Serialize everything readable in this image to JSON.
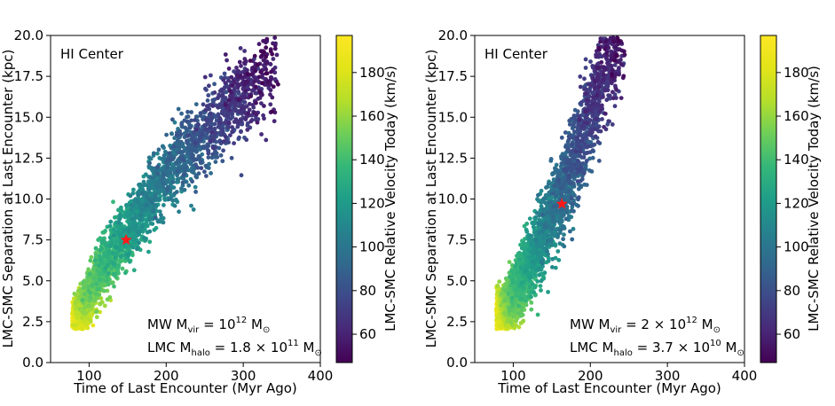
{
  "chart_data": [
    {
      "type": "scatter",
      "panel_label": "HI Center",
      "xlabel": "Time of Last Encounter (Myr Ago)",
      "ylabel": "LMC-SMC Separation at Last Encounter (kpc)",
      "xlim": [
        50,
        400
      ],
      "ylim": [
        0,
        20
      ],
      "xticks": [
        100,
        200,
        300,
        400
      ],
      "yticks": [
        0.0,
        2.5,
        5.0,
        7.5,
        10.0,
        12.5,
        15.0,
        17.5,
        20.0
      ],
      "colorbar": {
        "label": "LMC-SMC Relative Velocity Today (km/s)",
        "range": [
          47,
          197
        ],
        "ticks": [
          60,
          80,
          100,
          120,
          140,
          160,
          180
        ],
        "colormap": "viridis"
      },
      "annotation_lines": [
        {
          "base": "MW M",
          "sub": "vir",
          "rest": " = 10",
          "sup": "12",
          "unit": " M",
          "unitsub": "⊙"
        },
        {
          "base": "LMC M",
          "sub": "halo",
          "rest": " = 1.8 × 10",
          "sup": "11",
          "unit": " M",
          "unitsub": "⊙"
        }
      ],
      "cloud": {
        "description_of_distribution": "dense band of points from low time/low separation to high time/high separation",
        "trend_points": [
          [
            85,
            2.5
          ],
          [
            100,
            4
          ],
          [
            120,
            6
          ],
          [
            150,
            8
          ],
          [
            180,
            10
          ],
          [
            210,
            12
          ],
          [
            240,
            13.5
          ],
          [
            280,
            15.5
          ],
          [
            340,
            18
          ]
        ],
        "n_points": 3200,
        "spread": 1.2,
        "velocity_at_start": 190,
        "velocity_at_end": 55
      },
      "highlight": {
        "x": 148,
        "y": 7.5,
        "marker": "star",
        "color": "#ff1a1a"
      }
    },
    {
      "type": "scatter",
      "panel_label": "HI Center",
      "xlabel": "Time of Last Encounter (Myr Ago)",
      "ylabel": "LMC-SMC Separation at Last Encounter (kpc)",
      "xlim": [
        50,
        400
      ],
      "ylim": [
        0,
        20
      ],
      "xticks": [
        100,
        200,
        300,
        400
      ],
      "yticks": [
        0.0,
        2.5,
        5.0,
        7.5,
        10.0,
        12.5,
        15.0,
        17.5,
        20.0
      ],
      "colorbar": {
        "label": "LMC-SMC Relative Velocity Today (km/s)",
        "range": [
          47,
          197
        ],
        "ticks": [
          60,
          80,
          100,
          120,
          140,
          160,
          180
        ],
        "colormap": "viridis"
      },
      "annotation_lines": [
        {
          "base": "MW M",
          "sub": "vir",
          "rest": " = 2 × 10",
          "sup": "12",
          "unit": " M",
          "unitsub": "⊙"
        },
        {
          "base": "LMC M",
          "sub": "halo",
          "rest": " = 3.7 × 10",
          "sup": "10",
          "unit": " M",
          "unitsub": "⊙"
        }
      ],
      "cloud": {
        "description_of_distribution": "steeper band reaching top of plot near 180-220 Myr",
        "trend_points": [
          [
            85,
            2.5
          ],
          [
            100,
            4
          ],
          [
            120,
            6
          ],
          [
            145,
            8.5
          ],
          [
            165,
            10.5
          ],
          [
            185,
            13
          ],
          [
            200,
            15.5
          ],
          [
            220,
            18
          ],
          [
            240,
            20
          ]
        ],
        "n_points": 3200,
        "spread": 1.5,
        "velocity_at_start": 190,
        "velocity_at_end": 55
      },
      "highlight": {
        "x": 163,
        "y": 9.7,
        "marker": "star",
        "color": "#ff1a1a"
      }
    }
  ]
}
